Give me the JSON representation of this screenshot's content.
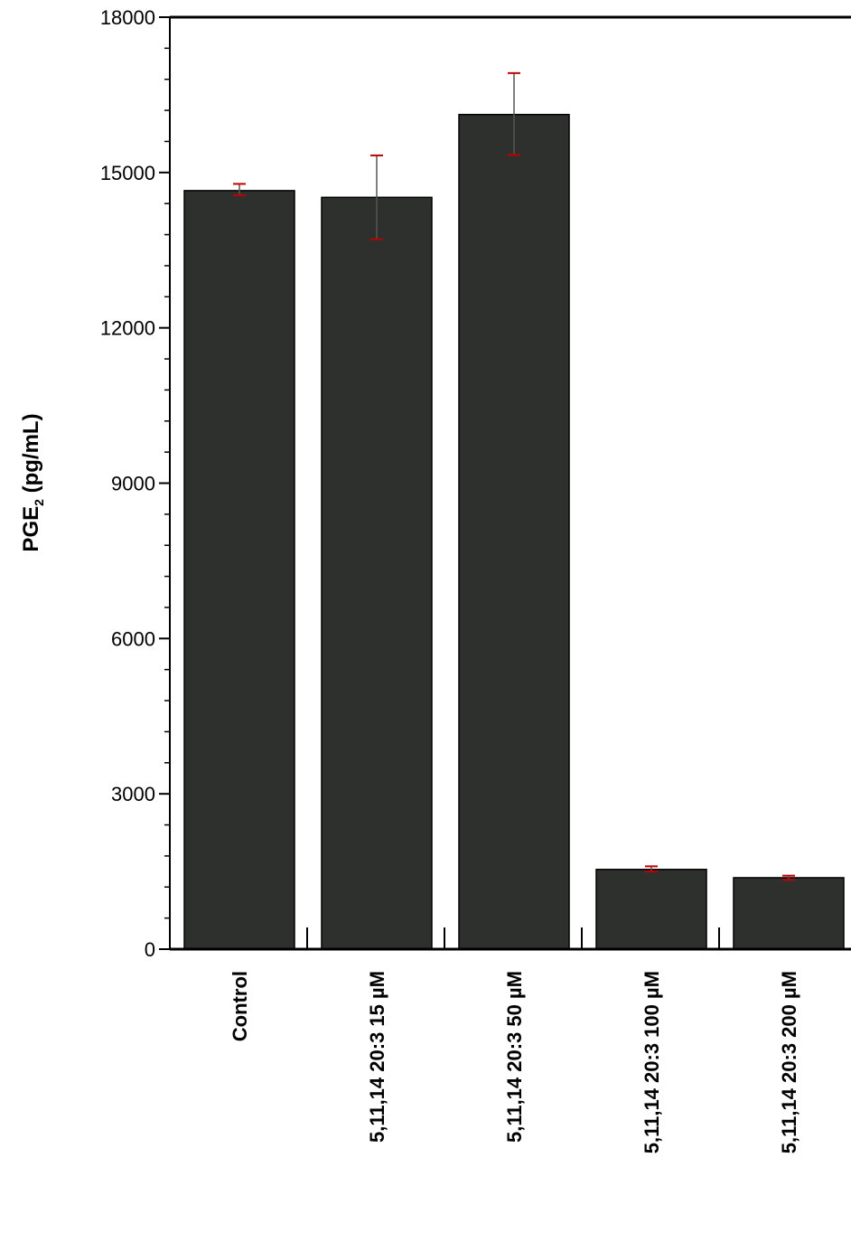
{
  "chart_data": {
    "type": "bar",
    "title": "",
    "xlabel": "",
    "ylabel": "PGE",
    "ylabel_subscript": "2",
    "ylabel_unit": " (pg/mL)",
    "ylim": [
      0,
      18000
    ],
    "yticks": [
      0,
      3000,
      6000,
      9000,
      12000,
      15000,
      18000
    ],
    "ytick_labels": [
      "0",
      "3000",
      "6000",
      "9000",
      "12000",
      "15000",
      "18000"
    ],
    "categories": [
      "Control",
      "5,11,14 20:3 15 µM",
      "5,11,14 20:3 50 µM",
      "5,11,14 20:3 100 µM",
      "5,11,14 20:3 200 µM"
    ],
    "values": [
      14650,
      14520,
      16120,
      1540,
      1380
    ],
    "error_upper": [
      14780,
      15330,
      16920,
      1600,
      1420
    ],
    "error_lower": [
      14560,
      13710,
      15340,
      1500,
      1340
    ],
    "grid": false,
    "legend": "none",
    "colors": {
      "bar": "#2e302d",
      "bar_edge": "#000000",
      "error_bar": "#c00000",
      "error_stem": "#555555",
      "axis": "#000000"
    }
  }
}
